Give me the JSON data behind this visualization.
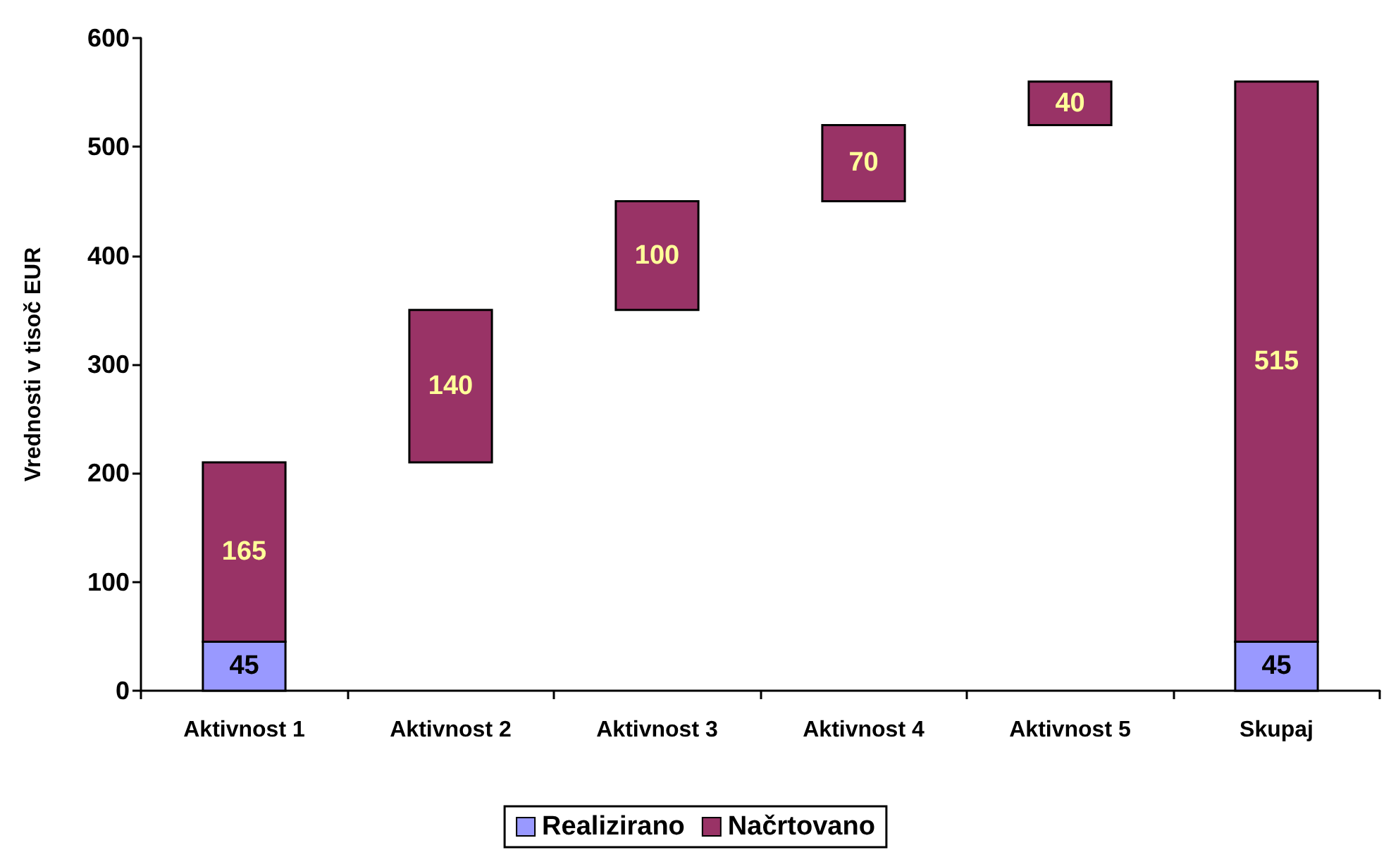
{
  "chart_data": {
    "type": "bar",
    "ylabel": "Vrednosti v tisoč EUR",
    "categories": [
      "Aktivnost 1",
      "Aktivnost 2",
      "Aktivnost 3",
      "Aktivnost 4",
      "Aktivnost 5",
      "Skupaj"
    ],
    "series": [
      {
        "name": "Realizirano",
        "color": "#9999ff",
        "values": [
          45,
          null,
          null,
          null,
          null,
          45
        ]
      },
      {
        "name": "Načrtovano",
        "color": "#993366",
        "values": [
          165,
          140,
          100,
          70,
          40,
          515
        ],
        "base": [
          45,
          210,
          350,
          450,
          520,
          45
        ]
      }
    ],
    "stacked": true,
    "ylim": [
      0,
      600
    ],
    "yticks": [
      0,
      100,
      200,
      300,
      400,
      500,
      600
    ],
    "grid": false,
    "legend": "bottom",
    "data_labels": true
  }
}
